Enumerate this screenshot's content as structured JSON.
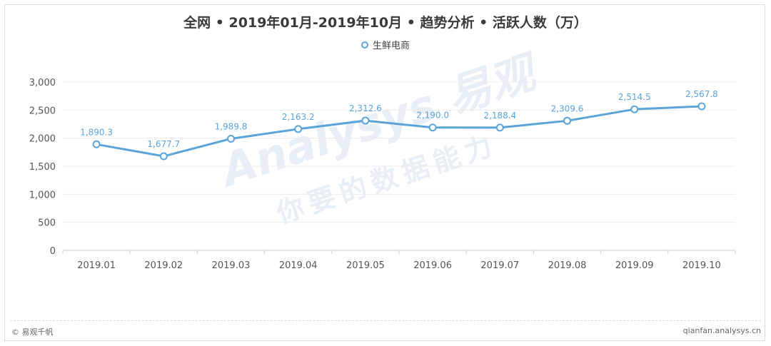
{
  "chart_data": {
    "type": "line",
    "title": "全网 • 2019年01月-2019年10月 • 趋势分析 • 活跃人数（万）",
    "categories": [
      "2019.01",
      "2019.02",
      "2019.03",
      "2019.04",
      "2019.05",
      "2019.06",
      "2019.07",
      "2019.08",
      "2019.09",
      "2019.10"
    ],
    "series": [
      {
        "name": "生鲜电商",
        "values": [
          1890.3,
          1677.7,
          1989.8,
          2163.2,
          2312.6,
          2190.0,
          2188.4,
          2309.6,
          2514.5,
          2567.8
        ],
        "labels": [
          "1,890.3",
          "1,677.7",
          "1,989.8",
          "2,163.2",
          "2,312.6",
          "2,190.0",
          "2,188.4",
          "2,309.6",
          "2,514.5",
          "2,567.8"
        ],
        "color": "#5ba4d8"
      }
    ],
    "ylim": [
      0,
      3000
    ],
    "yticks": [
      0,
      500,
      1000,
      1500,
      2000,
      2500,
      3000
    ],
    "ytick_labels": [
      "0",
      "500",
      "1,000",
      "1,500",
      "2,000",
      "2,500",
      "3,000"
    ],
    "grid": true,
    "legend_position": "top-center",
    "xlabel": "",
    "ylabel": ""
  },
  "footer": {
    "left": "© 易观千帆",
    "right": "qianfan.analysys.cn"
  },
  "watermark": {
    "brand": "Analysys 易观",
    "slogan": "你要的数据能力"
  }
}
